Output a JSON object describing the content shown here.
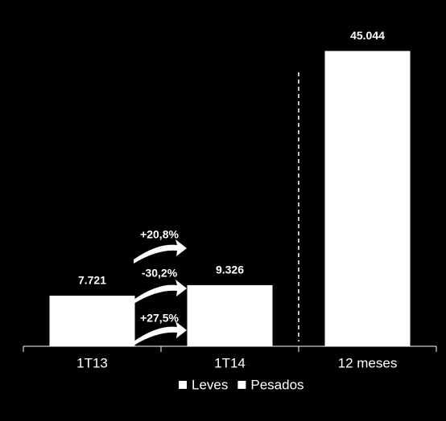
{
  "chart_data": {
    "type": "bar",
    "categories": [
      "1T13",
      "1T14",
      "12 meses"
    ],
    "values": [
      7721,
      9326,
      45044
    ],
    "value_labels": [
      "7.721",
      "9.326",
      "45.044"
    ],
    "color": "#ffffff",
    "ylim": [
      0,
      50000
    ],
    "legend": [
      {
        "name": "Leves",
        "color": "#ffffff"
      },
      {
        "name": "Pesados",
        "color": "#ffffff"
      }
    ],
    "annotations": [
      "+20,8%",
      "-30,2%",
      "+27,5%"
    ]
  }
}
